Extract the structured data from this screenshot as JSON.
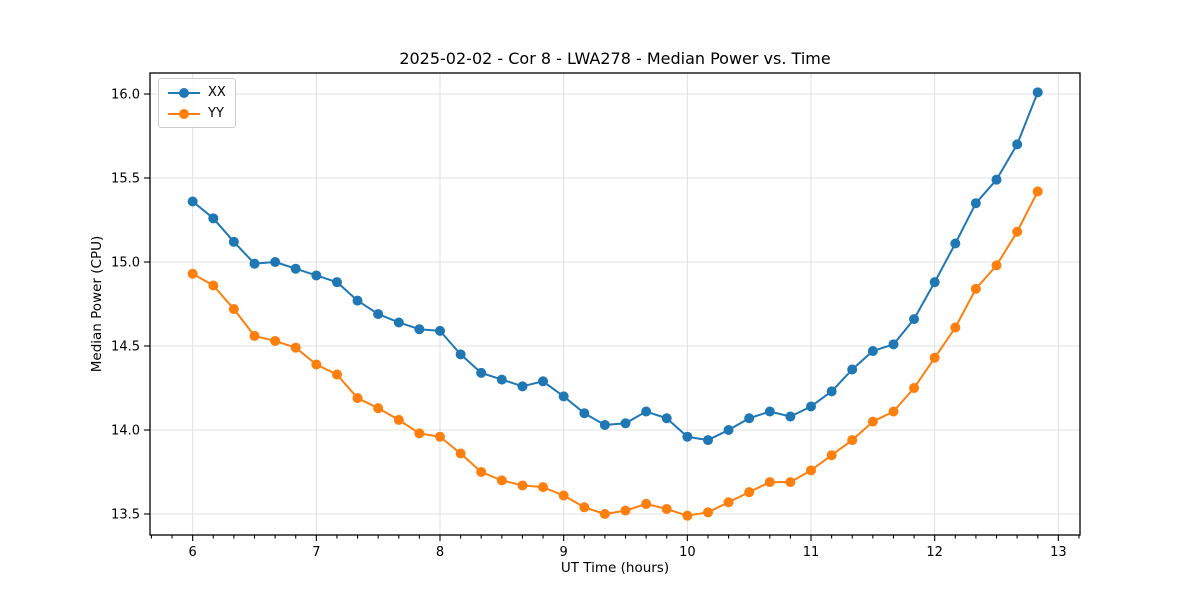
{
  "chart_data": {
    "type": "line",
    "title": "2025-02-02 - Cor 8 - LWA278 - Median Power vs. Time",
    "xlabel": "UT Time (hours)",
    "ylabel": "Median Power (CPU)",
    "xlim": [
      5.655,
      13.175
    ],
    "ylim": [
      13.375,
      16.125
    ],
    "x_major_ticks": [
      6,
      7,
      8,
      9,
      10,
      11,
      12,
      13
    ],
    "x_minor_step": 0.16667,
    "y_major_ticks": [
      13.5,
      14.0,
      14.5,
      15.0,
      15.5,
      16.0
    ],
    "grid": true,
    "legend_position": "upper-left",
    "background_color": "#ffffff",
    "grid_color": "#e0e0e0",
    "x": [
      6.0,
      6.167,
      6.333,
      6.5,
      6.667,
      6.833,
      7.0,
      7.167,
      7.333,
      7.5,
      7.667,
      7.833,
      8.0,
      8.167,
      8.333,
      8.5,
      8.667,
      8.833,
      9.0,
      9.167,
      9.333,
      9.5,
      9.667,
      9.833,
      10.0,
      10.167,
      10.333,
      10.5,
      10.667,
      10.833,
      11.0,
      11.167,
      11.333,
      11.5,
      11.667,
      11.833,
      12.0,
      12.167,
      12.333,
      12.5,
      12.667,
      12.833
    ],
    "series": [
      {
        "name": "XX",
        "color": "#1f77b4",
        "values": [
          15.36,
          15.26,
          15.12,
          14.99,
          15.0,
          14.96,
          14.92,
          14.88,
          14.77,
          14.69,
          14.64,
          14.6,
          14.59,
          14.45,
          14.34,
          14.3,
          14.26,
          14.29,
          14.2,
          14.1,
          14.03,
          14.04,
          14.11,
          14.07,
          13.96,
          13.94,
          14.0,
          14.07,
          14.11,
          14.08,
          14.14,
          14.23,
          14.36,
          14.47,
          14.51,
          14.66,
          14.88,
          15.11,
          15.35,
          15.49,
          15.7,
          16.01
        ]
      },
      {
        "name": "YY",
        "color": "#ff7f0e",
        "values": [
          14.93,
          14.86,
          14.72,
          14.56,
          14.53,
          14.49,
          14.39,
          14.33,
          14.19,
          14.13,
          14.06,
          13.98,
          13.96,
          13.86,
          13.75,
          13.7,
          13.67,
          13.66,
          13.61,
          13.54,
          13.5,
          13.52,
          13.56,
          13.53,
          13.49,
          13.51,
          13.57,
          13.63,
          13.69,
          13.69,
          13.76,
          13.85,
          13.94,
          14.05,
          14.11,
          14.25,
          14.43,
          14.61,
          14.84,
          14.98,
          15.18,
          15.42
        ]
      }
    ]
  }
}
